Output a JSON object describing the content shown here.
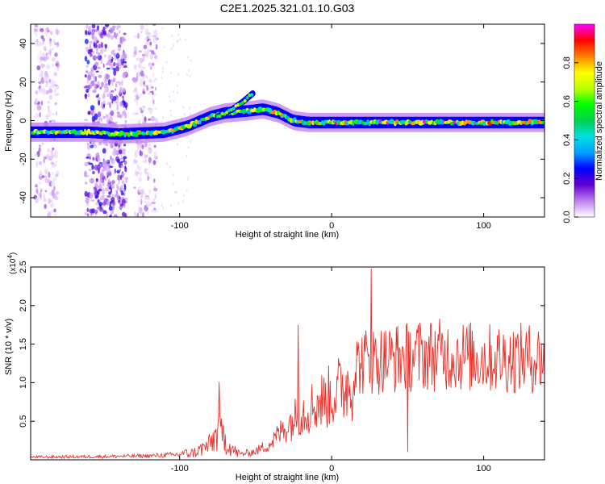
{
  "title": "C2E1.2025.321.01.10.G03",
  "chart_data": [
    {
      "type": "heatmap",
      "title": "C2E1.2025.321.01.10.G03",
      "xlabel": "Height of straight line (km)",
      "ylabel": "Frequency (Hz)",
      "xlim": [
        -198,
        140
      ],
      "ylim": [
        -50,
        50
      ],
      "x_ticks": [
        -100,
        0,
        100
      ],
      "x_tick_labels": [
        "-100",
        "0",
        "100"
      ],
      "y_ticks": [
        -40,
        -20,
        0,
        20,
        40
      ],
      "y_tick_labels": [
        "-40",
        "-20",
        "0",
        "20",
        "40"
      ],
      "colorbar": {
        "label": "Normalized spectral amplitude",
        "range": [
          0,
          1
        ],
        "ticks": [
          0,
          0.2,
          0.4,
          0.6,
          0.8
        ],
        "tick_labels": [
          "0.0",
          "0.2",
          "0.4",
          "0.6",
          "0.8"
        ],
        "colors": [
          "#ffffff",
          "#c080f0",
          "#6000d0",
          "#0000ff",
          "#00a0ff",
          "#00e0e0",
          "#00d050",
          "#00ff00",
          "#c0ff00",
          "#ffff00",
          "#ff8000",
          "#ff0000",
          "#ff00ff"
        ]
      },
      "ridge_x": [
        -198,
        -160,
        -140,
        -110,
        -95,
        -80,
        -70,
        -55,
        -45,
        -35,
        -25,
        -15,
        0,
        10,
        20,
        40,
        60,
        80,
        100,
        120,
        140
      ],
      "ridge_freq": [
        -6,
        -6,
        -7,
        -6,
        -3,
        2,
        4,
        5,
        6,
        4,
        0,
        -1,
        -1,
        -1,
        -1,
        -1,
        -1,
        -1,
        -1,
        -1,
        -1
      ],
      "secondary_ridge_x": [
        -75,
        -65,
        -58,
        -52
      ],
      "secondary_ridge_freq": [
        2,
        6,
        10,
        14
      ],
      "noise_bands_x": [
        [
          -195,
          -180
        ],
        [
          -162,
          -135
        ],
        [
          -130,
          -115
        ]
      ]
    },
    {
      "type": "line",
      "xlabel": "Height of straight line (km)",
      "ylabel": "SNR (10 * v/v)",
      "y_scale_label": "(x10",
      "y_scale_exponent": "4",
      "xlim": [
        -198,
        140
      ],
      "ylim": [
        0,
        2.5
      ],
      "x_ticks": [
        -100,
        0,
        100
      ],
      "x_tick_labels": [
        "-100",
        "0",
        "100"
      ],
      "y_ticks": [
        0.5,
        1.0,
        1.5,
        2.0,
        2.5
      ],
      "y_tick_labels": [
        "0.5",
        "1.0",
        "1.5",
        "2.0",
        "2.5"
      ],
      "series": [
        {
          "name": "SNR",
          "color": "#e8312a",
          "envelope_x": [
            -198,
            -150,
            -120,
            -100,
            -90,
            -80,
            -75,
            -70,
            -65,
            -60,
            -50,
            -40,
            -30,
            -20,
            -10,
            0,
            10,
            20,
            40,
            60,
            80,
            100,
            120,
            140
          ],
          "envelope_y": [
            0.04,
            0.05,
            0.06,
            0.08,
            0.15,
            0.3,
            0.55,
            0.4,
            0.2,
            0.1,
            0.15,
            0.3,
            0.6,
            0.85,
            1.0,
            1.15,
            1.35,
            1.5,
            1.55,
            1.6,
            1.6,
            1.55,
            1.55,
            1.55
          ],
          "peaks": [
            {
              "x": -74,
              "y": 1.01
            },
            {
              "x": -22,
              "y": 1.75
            },
            {
              "x": 26,
              "y": 2.48
            },
            {
              "x": 50,
              "y": 0.1
            }
          ]
        }
      ]
    }
  ]
}
